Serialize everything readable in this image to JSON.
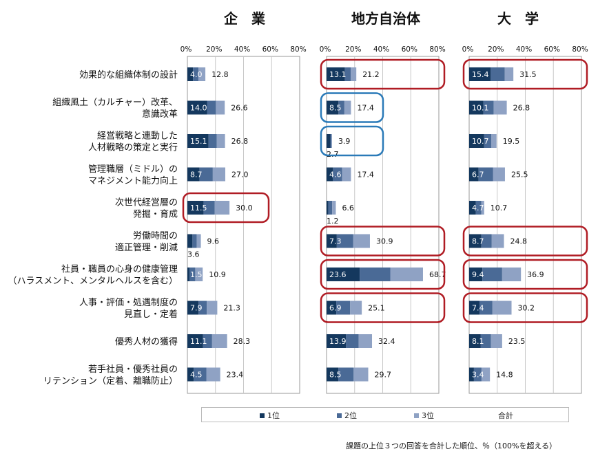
{
  "chart_data": {
    "type": "bar",
    "stacked": true,
    "orientation": "horizontal",
    "categories": [
      [
        "効果的な組織体制の設計"
      ],
      [
        "組織風土（カルチャー）改革、",
        "意識改革"
      ],
      [
        "経営戦略と連動した",
        "人材戦略の策定と実行"
      ],
      [
        "管理職層（ミドル）の",
        "マネジメント能力向上"
      ],
      [
        "次世代経営層の",
        "発掘・育成"
      ],
      [
        "労働時間の",
        "適正管理・削減"
      ],
      [
        "社員・職員の心身の健康管理",
        "（ハラスメント、メンタルヘルスを含む）"
      ],
      [
        "人事・評価・処遇制度の",
        "見直し・定着"
      ],
      [
        "優秀人材の獲得"
      ],
      [
        "若手社員・優秀社員の",
        "リテンション（定着、離職防止）"
      ]
    ],
    "xlim": [
      0,
      80
    ],
    "ticks": [
      "0%",
      "20%",
      "40%",
      "60%",
      "80%"
    ],
    "legend_labels": [
      "1位",
      "2位",
      "3位",
      "合計"
    ],
    "colors": {
      "rank1": "#14385e",
      "rank2": "#4a6a96",
      "rank3": "#8fa2c4",
      "highlight_red": "#b01c24",
      "highlight_blue": "#2a7ab8"
    },
    "groups": [
      {
        "name": "企　業",
        "first": [
          4.0,
          14.0,
          15.1,
          8.7,
          11.5,
          3.6,
          1.5,
          7.9,
          11.1,
          4.5
        ],
        "first_labels": [
          "4.0",
          "14.0",
          "15.1",
          "8.7",
          "11.5",
          "3.6",
          "1.5",
          "7.9",
          "11.1",
          "4.5"
        ],
        "second": [
          3.9,
          6.3,
          5.8,
          9.4,
          8.0,
          3.1,
          4.1,
          5.9,
          6.5,
          9.0
        ],
        "totals": [
          12.8,
          26.6,
          26.8,
          27.0,
          30.0,
          9.6,
          10.9,
          21.3,
          28.3,
          23.4
        ],
        "total_labels": [
          "12.8",
          "26.6",
          "26.8",
          "27.0",
          "30.0",
          "9.6",
          "10.9",
          "21.3",
          "28.3",
          "23.4"
        ],
        "first_below": [
          false,
          false,
          false,
          false,
          false,
          true,
          false,
          false,
          false,
          false
        ],
        "highlights": [
          {
            "from": 4,
            "to": 4,
            "color": "red"
          }
        ]
      },
      {
        "name": "地方自治体",
        "first": [
          13.1,
          8.5,
          2.7,
          4.6,
          1.2,
          7.3,
          23.6,
          6.9,
          13.9,
          8.5
        ],
        "first_labels": [
          "13.1",
          "8.5",
          "2.7",
          "4.6",
          "1.2",
          "7.3",
          "23.6",
          "6.9",
          "13.9",
          "8.5"
        ],
        "second": [
          4.2,
          4.2,
          0.8,
          6.5,
          2.8,
          11.6,
          21.8,
          9.9,
          9.0,
          10.8
        ],
        "totals": [
          21.2,
          17.4,
          3.9,
          17.4,
          6.6,
          30.9,
          68.7,
          25.1,
          32.4,
          29.7
        ],
        "total_labels": [
          "21.2",
          "17.4",
          "3.9",
          "17.4",
          "6.6",
          "30.9",
          "68.7",
          "25.1",
          "32.4",
          "29.7"
        ],
        "first_below": [
          false,
          false,
          true,
          false,
          true,
          false,
          false,
          false,
          false,
          false
        ],
        "highlights": [
          {
            "from": 0,
            "to": 0,
            "color": "red"
          },
          {
            "from": 1,
            "to": 1,
            "color": "blue"
          },
          {
            "from": 2,
            "to": 2,
            "color": "blue"
          },
          {
            "from": 5,
            "to": 5,
            "color": "red"
          },
          {
            "from": 6,
            "to": 6,
            "color": "red"
          },
          {
            "from": 7,
            "to": 7,
            "color": "red"
          }
        ]
      },
      {
        "name": "大　学",
        "first": [
          15.4,
          10.1,
          10.7,
          6.7,
          4.7,
          8.7,
          9.4,
          7.4,
          8.1,
          3.4
        ],
        "first_labels": [
          "15.4",
          "10.1",
          "10.7",
          "6.7",
          "4.7",
          "8.7",
          "9.4",
          "7.4",
          "8.1",
          "3.4"
        ],
        "second": [
          10.0,
          7.4,
          5.0,
          10.4,
          4.0,
          7.4,
          14.1,
          9.2,
          7.4,
          5.4
        ],
        "totals": [
          31.5,
          26.8,
          19.5,
          25.5,
          10.7,
          24.8,
          36.9,
          30.2,
          23.5,
          14.8
        ],
        "total_labels": [
          "31.5",
          "26.8",
          "19.5",
          "25.5",
          "10.7",
          "24.8",
          "36.9",
          "30.2",
          "23.5",
          "14.8"
        ],
        "first_below": [
          false,
          false,
          false,
          false,
          false,
          false,
          false,
          false,
          false,
          false
        ],
        "highlights": [
          {
            "from": 0,
            "to": 0,
            "color": "red"
          },
          {
            "from": 5,
            "to": 5,
            "color": "red"
          },
          {
            "from": 6,
            "to": 6,
            "color": "red"
          },
          {
            "from": 7,
            "to": 7,
            "color": "red"
          }
        ]
      }
    ]
  },
  "footnote": "課題の上位３つの回答を合計した順位、％（100%を超える）"
}
